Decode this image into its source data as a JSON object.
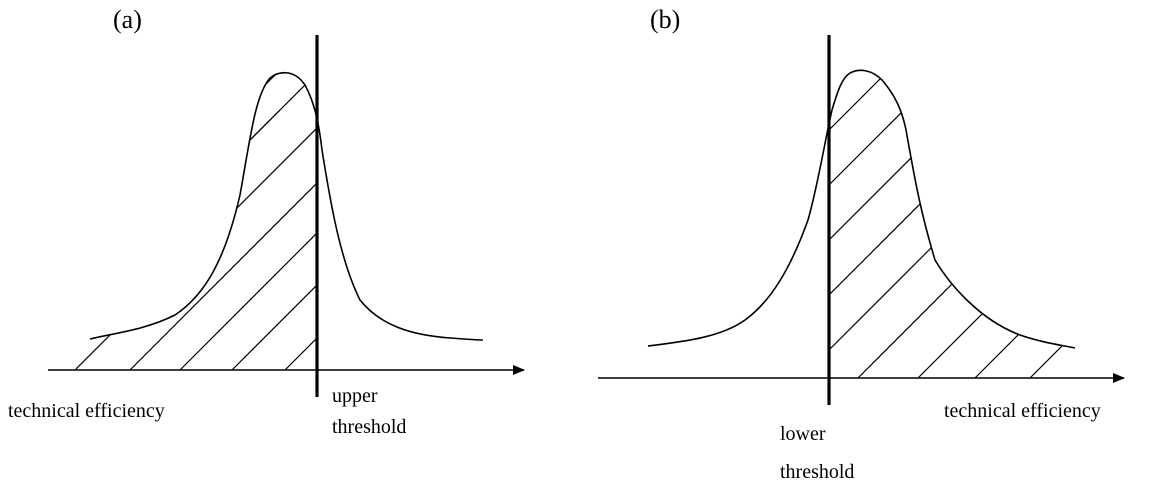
{
  "panels": [
    {
      "letter": "(a)",
      "axis_label": "technical efficiency",
      "threshold_line1": "upper",
      "threshold_line2": "threshold",
      "shaded_side": "left-of-threshold"
    },
    {
      "letter": "(b)",
      "axis_label": "technical efficiency",
      "threshold_line1": "lower",
      "threshold_line2": "threshold",
      "shaded_side": "right-of-threshold"
    }
  ]
}
